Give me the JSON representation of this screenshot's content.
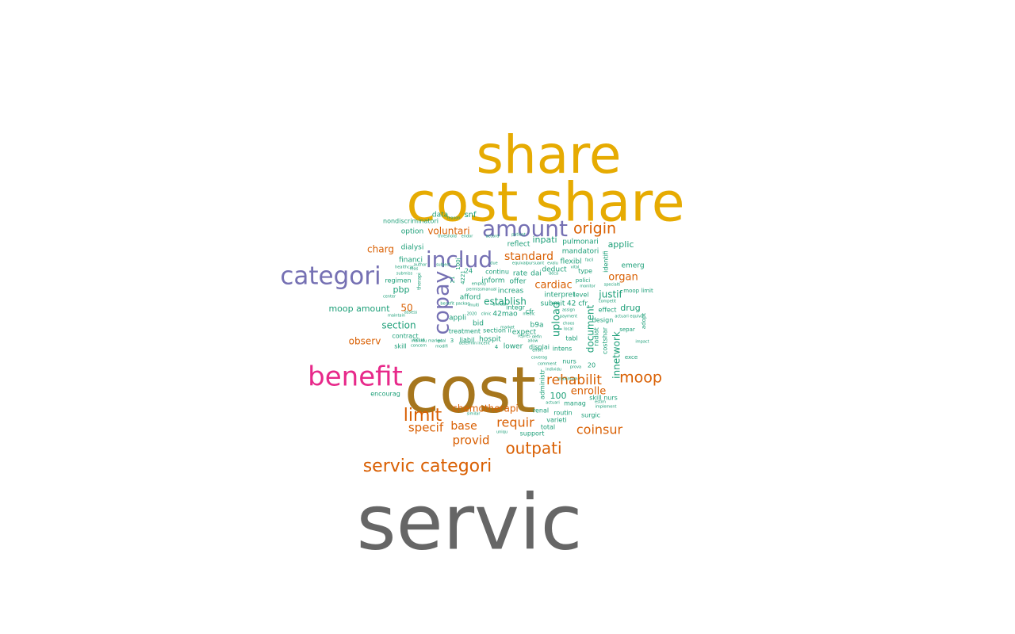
{
  "palette": {
    "grey": "#666666",
    "gold": "#E6AB02",
    "brown": "#A6761D",
    "magenta": "#E7298A",
    "purple": "#7570B3",
    "orange": "#D95F02",
    "teal": "#1B9E77"
  },
  "words": [
    {
      "text": "servic",
      "color": "grey"
    },
    {
      "text": "cost",
      "color": "brown"
    },
    {
      "text": "cost share",
      "color": "gold"
    },
    {
      "text": "share",
      "color": "gold"
    },
    {
      "text": "benefit",
      "color": "magenta"
    },
    {
      "text": "categori",
      "color": "purple"
    },
    {
      "text": "includ",
      "color": "purple"
    },
    {
      "text": "amount",
      "color": "purple"
    },
    {
      "text": "copay",
      "color": "purple"
    },
    {
      "text": "servic categori",
      "color": "orange"
    },
    {
      "text": "limit",
      "color": "orange"
    },
    {
      "text": "outpati",
      "color": "orange"
    },
    {
      "text": "moop",
      "color": "orange"
    },
    {
      "text": "origin",
      "color": "orange"
    },
    {
      "text": "coinsur",
      "color": "orange"
    },
    {
      "text": "rehabilit",
      "color": "orange"
    },
    {
      "text": "requir",
      "color": "orange"
    },
    {
      "text": "provid",
      "color": "orange"
    },
    {
      "text": "specif",
      "color": "orange"
    },
    {
      "text": "standard",
      "color": "orange"
    },
    {
      "text": "base",
      "color": "orange"
    },
    {
      "text": "cardiac",
      "color": "orange"
    },
    {
      "text": "organ",
      "color": "orange"
    },
    {
      "text": "enrolle",
      "color": "orange"
    },
    {
      "text": "chemotherapi",
      "color": "orange"
    },
    {
      "text": "voluntari",
      "color": "orange"
    },
    {
      "text": "charg",
      "color": "orange"
    },
    {
      "text": "observ",
      "color": "orange"
    },
    {
      "text": "50",
      "color": "orange"
    },
    {
      "text": "upload",
      "color": "teal"
    },
    {
      "text": "document",
      "color": "teal"
    },
    {
      "text": "innetwork",
      "color": "teal"
    },
    {
      "text": "justif",
      "color": "teal"
    },
    {
      "text": "establish",
      "color": "teal"
    },
    {
      "text": "section",
      "color": "teal"
    },
    {
      "text": "moop amount",
      "color": "teal"
    },
    {
      "text": "drug",
      "color": "teal"
    },
    {
      "text": "applic",
      "color": "teal"
    },
    {
      "text": "inpati",
      "color": "teal"
    },
    {
      "text": "pbp",
      "color": "teal"
    },
    {
      "text": "100",
      "color": "teal"
    },
    {
      "text": "snf",
      "color": "teal"
    },
    {
      "text": "data",
      "color": "teal"
    },
    {
      "text": "nondiscriminatori",
      "color": "teal"
    },
    {
      "text": "option",
      "color": "teal"
    },
    {
      "text": "dialysi",
      "color": "teal"
    },
    {
      "text": "financi",
      "color": "teal"
    },
    {
      "text": "regimen",
      "color": "teal"
    },
    {
      "text": "contract",
      "color": "teal"
    },
    {
      "text": "skill",
      "color": "teal"
    },
    {
      "text": "encourag",
      "color": "teal"
    },
    {
      "text": "reflect",
      "color": "teal"
    },
    {
      "text": "pulmonari",
      "color": "teal"
    },
    {
      "text": "mandatori",
      "color": "teal"
    },
    {
      "text": "flexibl",
      "color": "teal"
    },
    {
      "text": "emerg",
      "color": "teal"
    },
    {
      "text": "identifi",
      "color": "teal"
    },
    {
      "text": "type",
      "color": "teal"
    },
    {
      "text": "polici",
      "color": "teal"
    },
    {
      "text": "deduct",
      "color": "teal"
    },
    {
      "text": "rate",
      "color": "teal"
    },
    {
      "text": "dai",
      "color": "teal"
    },
    {
      "text": "offer",
      "color": "teal"
    },
    {
      "text": "inform",
      "color": "teal"
    },
    {
      "text": "continu",
      "color": "teal"
    },
    {
      "text": "increas",
      "color": "teal"
    },
    {
      "text": "interpret",
      "color": "teal"
    },
    {
      "text": "level",
      "color": "teal"
    },
    {
      "text": "submit",
      "color": "teal"
    },
    {
      "text": "42 cfr",
      "color": "teal"
    },
    {
      "text": "afford",
      "color": "teal"
    },
    {
      "text": "integr",
      "color": "teal"
    },
    {
      "text": "cfr",
      "color": "teal"
    },
    {
      "text": "42mao",
      "color": "teal"
    },
    {
      "text": "appli",
      "color": "teal"
    },
    {
      "text": "bid",
      "color": "teal"
    },
    {
      "text": "b9a",
      "color": "teal"
    },
    {
      "text": "expect",
      "color": "teal"
    },
    {
      "text": "treatment",
      "color": "teal"
    },
    {
      "text": "section ii",
      "color": "teal"
    },
    {
      "text": "liabil",
      "color": "teal"
    },
    {
      "text": "hospit",
      "color": "teal"
    },
    {
      "text": "lower",
      "color": "teal"
    },
    {
      "text": "displai",
      "color": "teal"
    },
    {
      "text": "tabl",
      "color": "teal"
    },
    {
      "text": "intens",
      "color": "teal"
    },
    {
      "text": "nurs",
      "color": "teal"
    },
    {
      "text": "administr",
      "color": "teal"
    },
    {
      "text": "effect",
      "color": "teal"
    },
    {
      "text": "design",
      "color": "teal"
    },
    {
      "text": "radiat",
      "color": "teal"
    },
    {
      "text": "costshar",
      "color": "teal"
    },
    {
      "text": "separ",
      "color": "teal"
    },
    {
      "text": "adopt",
      "color": "teal"
    },
    {
      "text": "exce",
      "color": "teal"
    },
    {
      "text": "skill nurs",
      "color": "teal"
    },
    {
      "text": "manag",
      "color": "teal"
    },
    {
      "text": "routin",
      "color": "teal"
    },
    {
      "text": "surgic",
      "color": "teal"
    },
    {
      "text": "renal",
      "color": "teal"
    },
    {
      "text": "varieti",
      "color": "teal"
    },
    {
      "text": "total",
      "color": "teal"
    },
    {
      "text": "support",
      "color": "teal"
    },
    {
      "text": "moop limit",
      "color": "teal"
    },
    {
      "text": "20",
      "color": "teal"
    },
    {
      "text": "24",
      "color": "teal"
    },
    {
      "text": "3",
      "color": "teal"
    },
    {
      "text": "4",
      "color": "teal"
    },
    {
      "text": "21",
      "color": "teal"
    },
    {
      "text": "4221",
      "color": "teal"
    },
    {
      "text": "100j",
      "color": "teal"
    },
    {
      "text": "therapi",
      "color": "teal"
    },
    {
      "text": "author",
      "color": "teal"
    },
    {
      "text": "healthcar",
      "color": "teal"
    },
    {
      "text": "submiss",
      "color": "teal"
    },
    {
      "text": "reas",
      "color": "teal"
    },
    {
      "text": "subject",
      "color": "teal"
    },
    {
      "text": "threshold",
      "color": "teal"
    },
    {
      "text": "reason",
      "color": "teal"
    },
    {
      "text": "endor",
      "color": "teal"
    },
    {
      "text": "accord",
      "color": "teal"
    },
    {
      "text": "patient",
      "color": "teal"
    },
    {
      "text": "due",
      "color": "teal"
    },
    {
      "text": "equival",
      "color": "teal"
    },
    {
      "text": "pursuant",
      "color": "teal"
    },
    {
      "text": "evalu",
      "color": "teal"
    },
    {
      "text": "vital",
      "color": "teal"
    },
    {
      "text": "facil",
      "color": "teal"
    },
    {
      "text": "deca",
      "color": "teal"
    },
    {
      "text": "monitor",
      "color": "teal"
    },
    {
      "text": "specialti",
      "color": "teal"
    },
    {
      "text": "competit",
      "color": "teal"
    },
    {
      "text": "employ",
      "color": "teal"
    },
    {
      "text": "permiss",
      "color": "teal"
    },
    {
      "text": "manual",
      "color": "teal"
    },
    {
      "text": "center",
      "color": "teal"
    },
    {
      "text": "benefit packag",
      "color": "teal"
    },
    {
      "text": "multi",
      "color": "teal"
    },
    {
      "text": "maintain",
      "color": "teal"
    },
    {
      "text": "assess",
      "color": "teal"
    },
    {
      "text": "2020",
      "color": "teal"
    },
    {
      "text": "clinic",
      "color": "teal"
    },
    {
      "text": "annual",
      "color": "teal"
    },
    {
      "text": "includ",
      "color": "teal"
    },
    {
      "text": "concern",
      "color": "teal"
    },
    {
      "text": "individu market",
      "color": "teal"
    },
    {
      "text": "determin",
      "color": "teal"
    },
    {
      "text": "incent",
      "color": "teal"
    },
    {
      "text": "modifi",
      "color": "teal"
    },
    {
      "text": "goal",
      "color": "teal"
    },
    {
      "text": "similar",
      "color": "teal"
    },
    {
      "text": "uniqu",
      "color": "teal"
    },
    {
      "text": "medic",
      "color": "teal"
    },
    {
      "text": "actuari equival",
      "color": "teal"
    },
    {
      "text": "assign",
      "color": "teal"
    },
    {
      "text": "payment",
      "color": "teal"
    },
    {
      "text": "choos",
      "color": "teal"
    },
    {
      "text": "local",
      "color": "teal"
    },
    {
      "text": "impact",
      "color": "teal"
    },
    {
      "text": "estim",
      "color": "teal"
    },
    {
      "text": "implement",
      "color": "teal"
    },
    {
      "text": "actuari",
      "color": "teal"
    },
    {
      "text": "coverag",
      "color": "teal"
    },
    {
      "text": "comment",
      "color": "teal"
    },
    {
      "text": "maximum",
      "color": "teal"
    },
    {
      "text": "individu",
      "color": "teal"
    },
    {
      "text": "prova",
      "color": "teal"
    },
    {
      "text": "effort",
      "color": "teal"
    },
    {
      "text": "repres",
      "color": "teal"
    },
    {
      "text": "defin",
      "color": "teal"
    },
    {
      "text": "allow",
      "color": "teal"
    },
    {
      "text": "market",
      "color": "teal"
    }
  ]
}
